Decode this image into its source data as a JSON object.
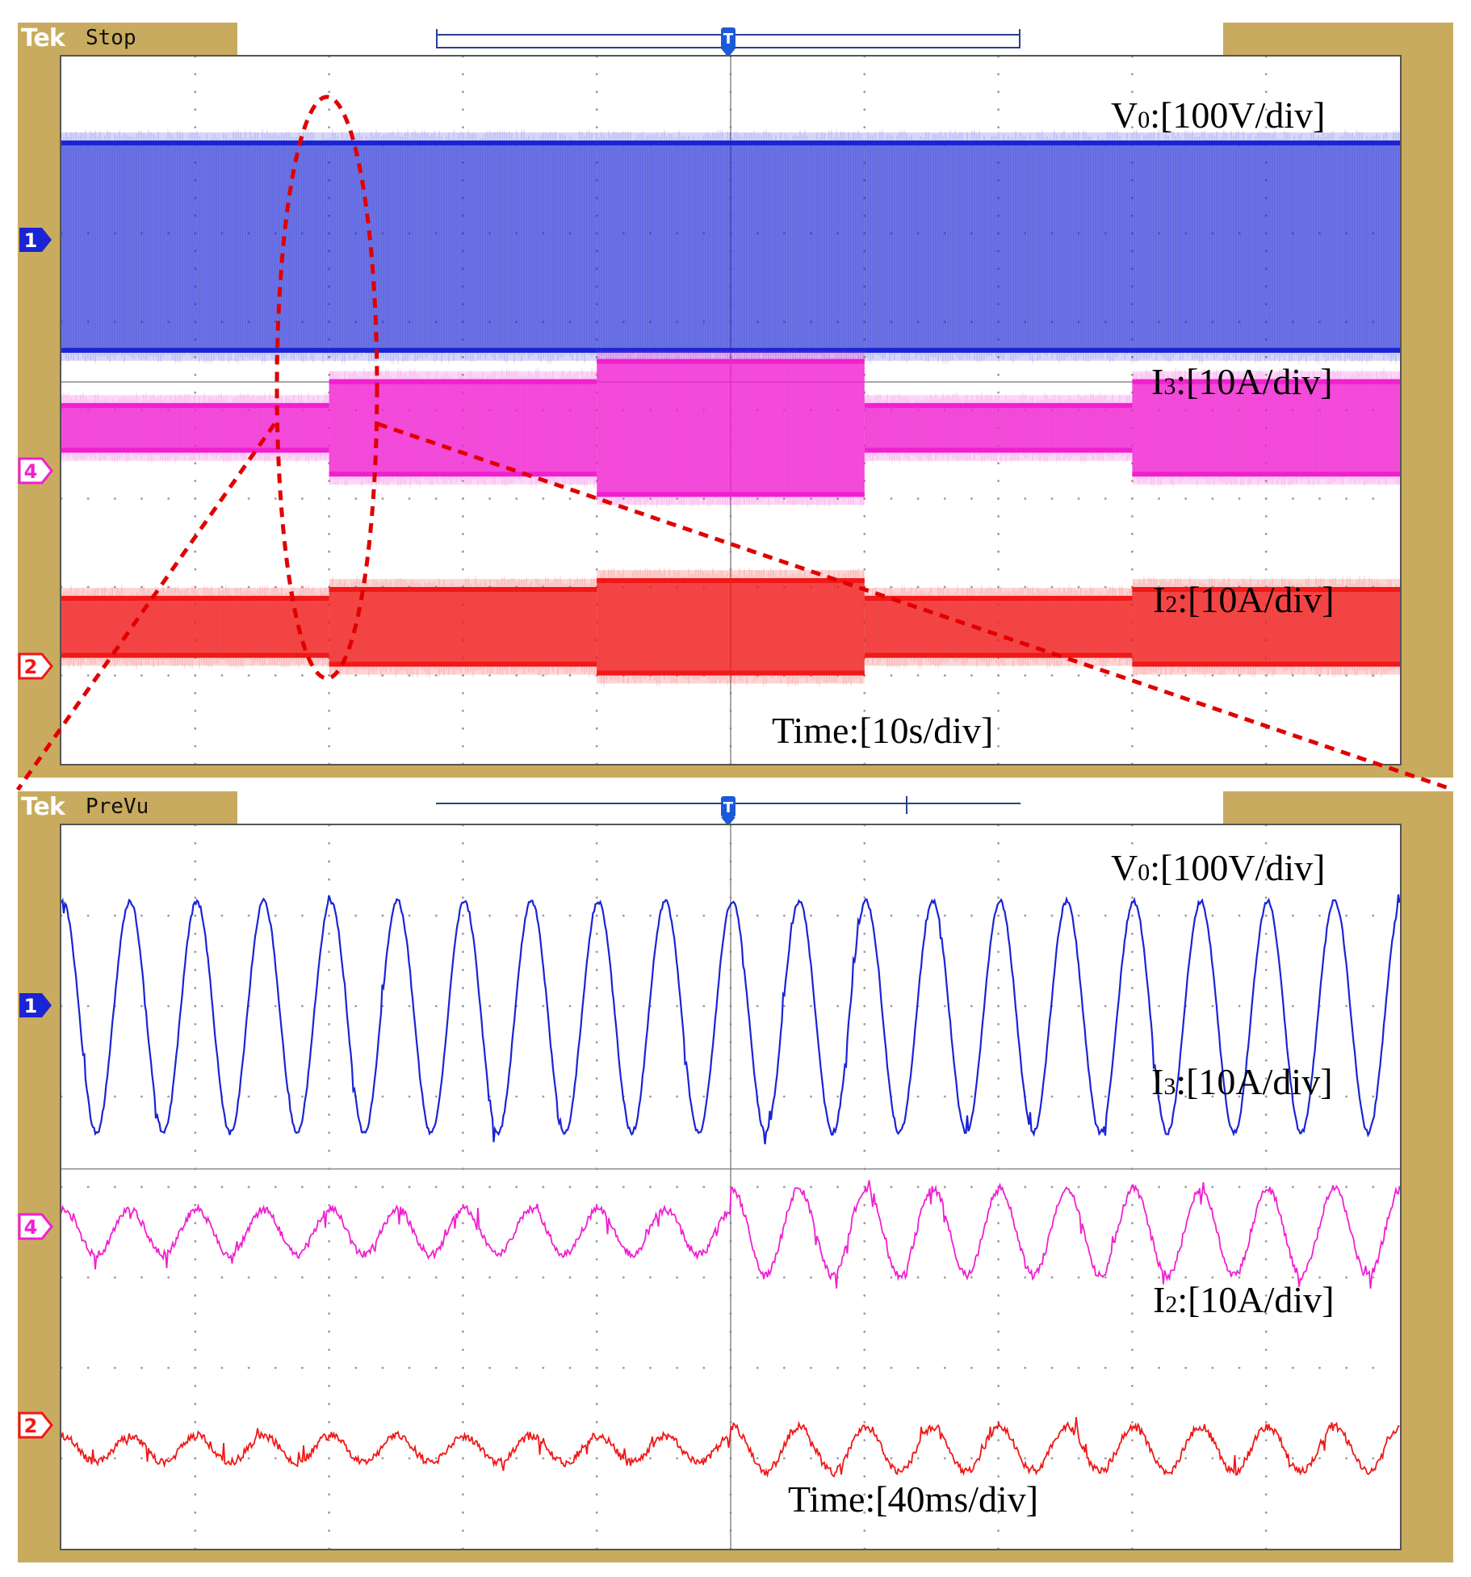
{
  "panels": [
    {
      "brand": "Tek",
      "status": "Stop",
      "labels": {
        "v0": {
          "symbol": "V",
          "sub": "0",
          "scale": ":[100V/div]"
        },
        "i3": {
          "symbol": "I",
          "sub": "3",
          "scale": ":[10A/div]"
        },
        "i2": {
          "symbol": "I",
          "sub": "2",
          "scale": ":[10A/div]"
        },
        "time": "Time:[10s/div]"
      },
      "channels": [
        "1",
        "4",
        "2"
      ]
    },
    {
      "brand": "Tek",
      "status": "PreVu",
      "labels": {
        "v0": {
          "symbol": "V",
          "sub": "0",
          "scale": ":[100V/div]"
        },
        "i3": {
          "symbol": "I",
          "sub": "3",
          "scale": ":[10A/div]"
        },
        "i2": {
          "symbol": "I",
          "sub": "2",
          "scale": ":[10A/div]"
        },
        "time": "Time:[40ms/div]"
      },
      "channels": [
        "1",
        "4",
        "2"
      ]
    }
  ],
  "colors": {
    "ch1": "#1a24d4",
    "ch4": "#f020d0",
    "ch2": "#f01818",
    "bezel": "#c9ab5f",
    "zoom_annotation": "#e00000"
  },
  "chart_data": [
    {
      "type": "line",
      "title": "",
      "time_scale": "10s/div",
      "divisions_x": 10,
      "series": [
        {
          "name": "V0",
          "scale": "100V/div",
          "kind": "envelope",
          "segments_amplitude_div": [
            1.2,
            1.2,
            1.2,
            1.2,
            1.2
          ]
        },
        {
          "name": "I3",
          "scale": "10A/div",
          "kind": "envelope",
          "segments_amplitude_div": [
            0.28,
            0.55,
            0.78,
            0.28,
            0.55
          ]
        },
        {
          "name": "I2",
          "scale": "10A/div",
          "kind": "envelope",
          "segments_amplitude_div": [
            0.35,
            0.45,
            0.55,
            0.35,
            0.45
          ]
        }
      ],
      "segment_boundaries_div": [
        0,
        2,
        4,
        6,
        8,
        10
      ]
    },
    {
      "type": "line",
      "title": "",
      "time_scale": "40ms/div",
      "divisions_x": 10,
      "series": [
        {
          "name": "V0",
          "scale": "100V/div",
          "cycles": 20,
          "amplitude_div": [
            1.28,
            1.28
          ]
        },
        {
          "name": "I3",
          "scale": "10A/div",
          "cycles": 20,
          "amplitude_div": [
            0.25,
            0.48
          ]
        },
        {
          "name": "I2",
          "scale": "10A/div",
          "cycles": 20,
          "amplitude_div": [
            0.15,
            0.25
          ]
        }
      ],
      "step_at_div": 5
    }
  ]
}
